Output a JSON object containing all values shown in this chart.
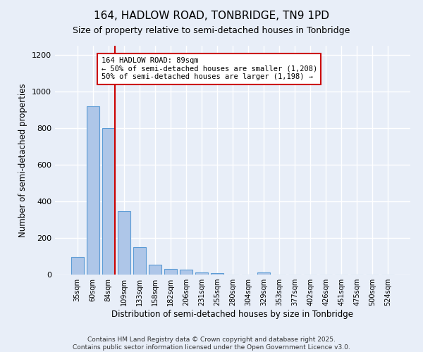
{
  "title": "164, HADLOW ROAD, TONBRIDGE, TN9 1PD",
  "subtitle": "Size of property relative to semi-detached houses in Tonbridge",
  "xlabel": "Distribution of semi-detached houses by size in Tonbridge",
  "ylabel": "Number of semi-detached properties",
  "footer_line1": "Contains HM Land Registry data © Crown copyright and database right 2025.",
  "footer_line2": "Contains public sector information licensed under the Open Government Licence v3.0.",
  "categories": [
    "35sqm",
    "60sqm",
    "84sqm",
    "109sqm",
    "133sqm",
    "158sqm",
    "182sqm",
    "206sqm",
    "231sqm",
    "255sqm",
    "280sqm",
    "304sqm",
    "329sqm",
    "353sqm",
    "377sqm",
    "402sqm",
    "426sqm",
    "451sqm",
    "475sqm",
    "500sqm",
    "524sqm"
  ],
  "values": [
    95,
    920,
    800,
    345,
    150,
    52,
    30,
    28,
    12,
    8,
    0,
    0,
    10,
    0,
    0,
    0,
    0,
    0,
    0,
    0,
    0
  ],
  "bar_color": "#aec6e8",
  "bar_edge_color": "#5b9bd5",
  "background_color": "#e8eef8",
  "grid_color": "#ffffff",
  "vline_color": "#cc0000",
  "annotation_text": "164 HADLOW ROAD: 89sqm\n← 50% of semi-detached houses are smaller (1,208)\n50% of semi-detached houses are larger (1,198) →",
  "annotation_box_color": "#ffffff",
  "annotation_box_edge": "#cc0000",
  "ylim": [
    0,
    1250
  ],
  "yticks": [
    0,
    200,
    400,
    600,
    800,
    1000,
    1200
  ]
}
